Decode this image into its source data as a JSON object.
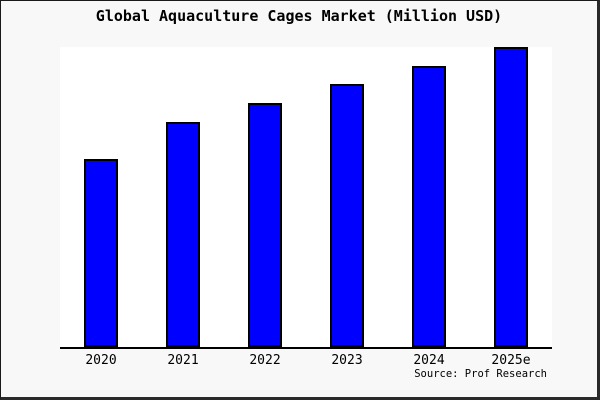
{
  "window": {
    "canvas_background": "#f8f8f8",
    "frame_border_color": "#1a1a1a"
  },
  "source_credit": "Source: Prof Research",
  "chart_data": {
    "type": "bar",
    "title": "Global Aquaculture Cages Market (Million USD)",
    "categories": [
      "2020",
      "2021",
      "2022",
      "2023",
      "2024",
      "2025e"
    ],
    "values": [
      62.7,
      75.0,
      81.3,
      87.7,
      93.7,
      100.0
    ],
    "values_note": "no y-axis scale shown in chart; values are relative bar heights as percent of tallest (2025e) bar",
    "xlabel": "",
    "ylabel": "",
    "ylim": [
      0,
      100.7
    ],
    "grid": false,
    "legend": false,
    "bar_color": "#0000ff",
    "bar_border_color": "#000000",
    "plot_background": "#ffffff",
    "axis_color": "#000000"
  }
}
